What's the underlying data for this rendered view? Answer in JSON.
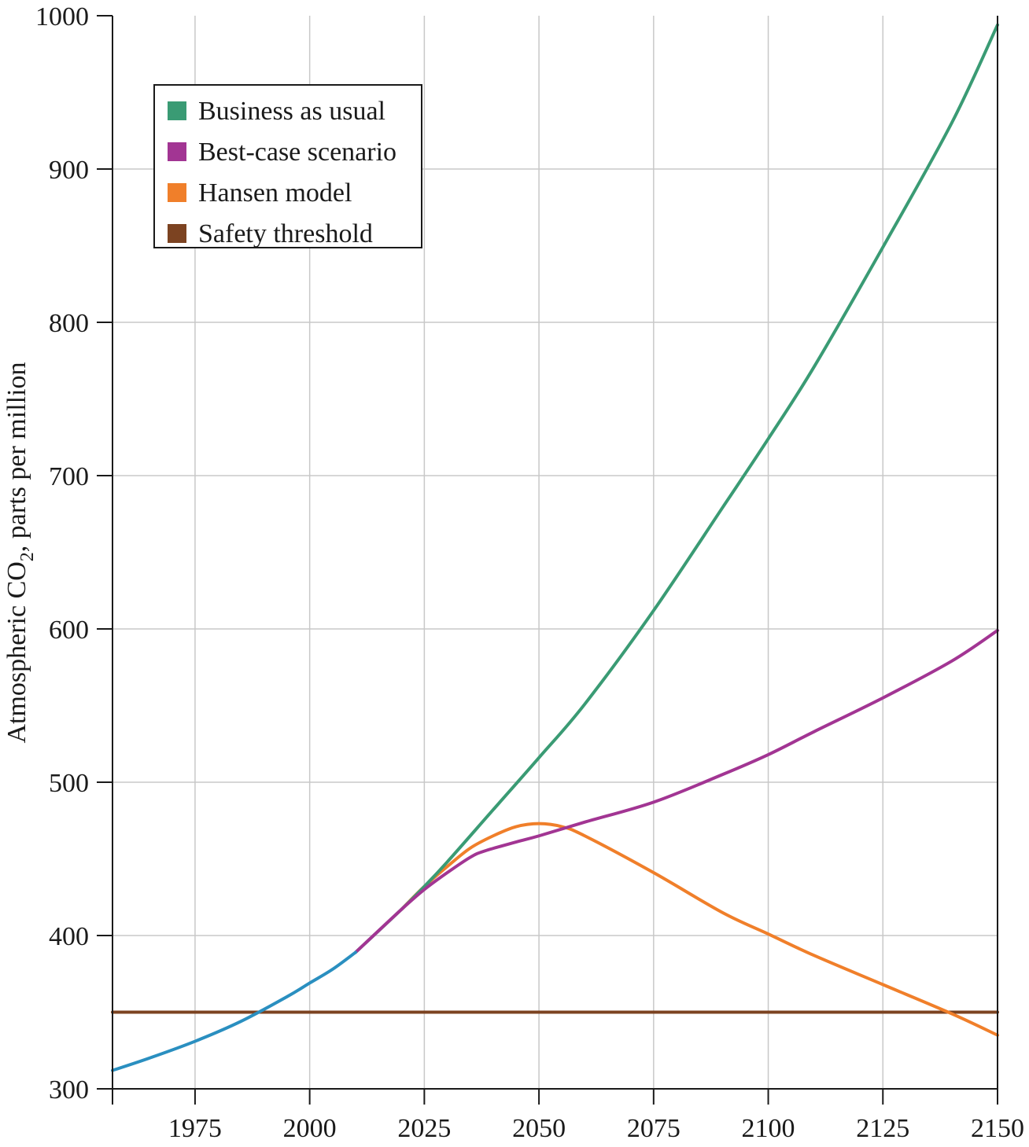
{
  "chart_data": {
    "type": "line",
    "title": "",
    "xlabel": "",
    "ylabel": "Atmospheric CO2, parts per million",
    "ylabel_parts": {
      "before": "Atmospheric CO",
      "subscript": "2",
      "after": ", parts per million"
    },
    "xlim": [
      1957,
      2150
    ],
    "ylim": [
      300,
      1000
    ],
    "x_ticks": [
      1975,
      2000,
      2025,
      2050,
      2075,
      2100,
      2125,
      2150
    ],
    "y_ticks": [
      300,
      400,
      500,
      600,
      700,
      800,
      900,
      1000
    ],
    "grid": true,
    "legend_position": "top-left",
    "legend": [
      {
        "label": "Business as usual",
        "color": "#3a9b74"
      },
      {
        "label": "Best-case scenario",
        "color": "#a23593"
      },
      {
        "label": "Hansen model",
        "color": "#f07f2a"
      },
      {
        "label": "Safety threshold",
        "color": "#7c4321"
      }
    ],
    "series": [
      {
        "color": "#2a8fc0",
        "x": [
          1957,
          1965,
          1975,
          1985,
          1995,
          2000,
          2005,
          2010
        ],
        "y": [
          312,
          320,
          331,
          344,
          360,
          369,
          378,
          389
        ]
      },
      {
        "name": "Business as usual",
        "color": "#3a9b74",
        "x": [
          2010,
          2020,
          2025,
          2030,
          2040,
          2050,
          2060,
          2075,
          2090,
          2100,
          2110,
          2125,
          2140,
          2150
        ],
        "y": [
          389,
          417,
          432,
          448,
          482,
          516,
          551,
          612,
          679,
          724,
          771,
          849,
          930,
          994
        ]
      },
      {
        "name": "Best-case scenario",
        "color": "#a23593",
        "x": [
          2010,
          2020,
          2025,
          2030,
          2035,
          2038,
          2045,
          2050,
          2060,
          2075,
          2090,
          2100,
          2110,
          2125,
          2140,
          2150
        ],
        "y": [
          389,
          417,
          430,
          441,
          451,
          455,
          461,
          465,
          474,
          487,
          505,
          518,
          533,
          555,
          579,
          599
        ]
      },
      {
        "name": "Hansen model",
        "color": "#f07f2a",
        "x": [
          2020,
          2025,
          2030,
          2035,
          2040,
          2045,
          2050,
          2055,
          2060,
          2075,
          2090,
          2100,
          2110,
          2125,
          2140,
          2150
        ],
        "y": [
          417,
          432,
          445,
          457,
          465,
          471,
          473,
          471,
          465,
          441,
          415,
          401,
          387,
          368,
          349,
          335
        ]
      },
      {
        "name": "Safety threshold",
        "color": "#7c4321",
        "x": [
          1957,
          2150
        ],
        "y": [
          350,
          350
        ]
      }
    ]
  }
}
